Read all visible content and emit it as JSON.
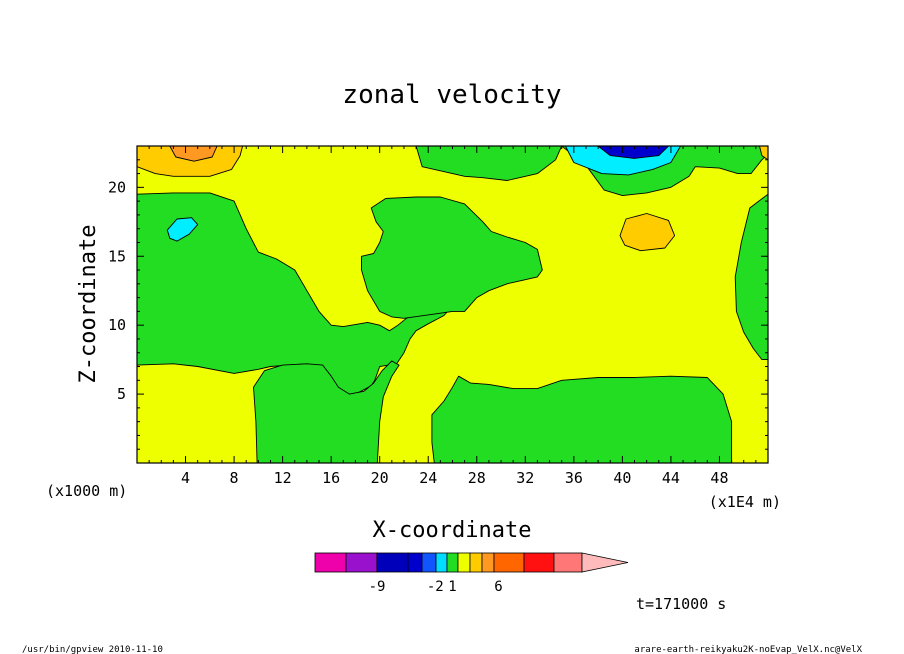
{
  "chart_data": {
    "type": "contour",
    "title": "zonal velocity",
    "xlabel": "X-coordinate",
    "ylabel": "Z-coordinate",
    "x_unit_left": "(x1000 m)",
    "x_unit_right": "(x1E4 m)",
    "xlim": [
      0,
      52
    ],
    "ylim": [
      0,
      23
    ],
    "x_ticks": [
      4,
      8,
      12,
      16,
      20,
      24,
      28,
      32,
      36,
      40,
      44,
      48
    ],
    "x_tick_labels": [
      "4",
      "8",
      "12",
      "16",
      "20",
      "24",
      "28",
      "32",
      "36",
      "40",
      "44",
      "48"
    ],
    "y_ticks": [
      5,
      10,
      15,
      20
    ],
    "y_tick_labels": [
      "5",
      "10",
      "15",
      "20"
    ],
    "time_label": "t=171000 s",
    "colors": {
      "green": "#22dd22",
      "yellow": "#eeff00",
      "yellow_orange": "#ffcc00",
      "orange": "#ff9922",
      "cyan": "#00eeff",
      "blue": "#0000cc"
    },
    "regions": [
      {
        "level": "0 to 1",
        "color": "green",
        "polygon": [
          [
            0,
            19.5
          ],
          [
            3,
            19.6
          ],
          [
            6,
            19.6
          ],
          [
            8,
            19
          ],
          [
            9,
            17
          ],
          [
            10,
            15.3
          ],
          [
            11.5,
            14.8
          ],
          [
            13,
            14
          ],
          [
            14,
            12.5
          ],
          [
            15,
            11
          ],
          [
            16,
            10
          ],
          [
            17,
            9.9
          ],
          [
            19,
            10.2
          ],
          [
            20,
            10
          ],
          [
            20.8,
            9.6
          ],
          [
            21.5,
            10
          ],
          [
            22.2,
            10.5
          ],
          [
            23,
            10.8
          ],
          [
            24,
            11.3
          ],
          [
            25,
            11.9
          ],
          [
            26,
            12.5
          ],
          [
            26.3,
            11.7
          ],
          [
            25.3,
            10.7
          ],
          [
            24,
            10.1
          ],
          [
            23,
            9.6
          ],
          [
            22.5,
            9
          ],
          [
            22,
            8
          ],
          [
            21.4,
            7.2
          ],
          [
            20,
            7
          ],
          [
            19.6,
            6
          ],
          [
            19.3,
            5.6
          ],
          [
            18,
            5
          ],
          [
            17,
            5
          ],
          [
            16.5,
            5.5
          ],
          [
            16,
            6.3
          ],
          [
            15.3,
            7
          ],
          [
            14,
            7.2
          ],
          [
            12.5,
            7.1
          ],
          [
            11,
            7
          ],
          [
            10,
            6.8
          ],
          [
            8,
            6.5
          ],
          [
            5,
            7
          ],
          [
            3,
            7.2
          ],
          [
            0,
            7.1
          ]
        ]
      },
      {
        "level": "0 to 1",
        "color": "green",
        "polygon": [
          [
            9.9,
            0
          ],
          [
            9.8,
            3
          ],
          [
            9.6,
            5.5
          ],
          [
            10.5,
            6.7
          ],
          [
            12,
            7.1
          ],
          [
            14,
            7.2
          ],
          [
            15.3,
            7.1
          ],
          [
            16,
            6.3
          ],
          [
            16.6,
            5.5
          ],
          [
            17.5,
            5
          ],
          [
            18.7,
            5.2
          ],
          [
            19.5,
            5.8
          ],
          [
            20.2,
            6.7
          ],
          [
            21,
            7.4
          ],
          [
            21.6,
            7.1
          ],
          [
            21,
            6.3
          ],
          [
            20.3,
            4.8
          ],
          [
            20,
            3
          ],
          [
            19.8,
            0
          ]
        ]
      },
      {
        "level": "0 to 1",
        "color": "green",
        "polygon": [
          [
            24.5,
            0
          ],
          [
            24.3,
            1.5
          ],
          [
            24.3,
            3.5
          ],
          [
            25.3,
            4.5
          ],
          [
            26,
            5.5
          ],
          [
            26.5,
            6.3
          ],
          [
            27.5,
            5.8
          ],
          [
            29,
            5.7
          ],
          [
            31,
            5.4
          ],
          [
            33,
            5.4
          ],
          [
            35,
            6
          ],
          [
            38,
            6.2
          ],
          [
            41,
            6.2
          ],
          [
            44,
            6.3
          ],
          [
            47,
            6.2
          ],
          [
            48.3,
            5
          ],
          [
            49,
            3
          ],
          [
            49,
            0
          ]
        ]
      },
      {
        "level": "0 to 1",
        "color": "green",
        "polygon": [
          [
            35,
            23
          ],
          [
            37,
            21.6
          ],
          [
            38.5,
            19.8
          ],
          [
            40,
            19.4
          ],
          [
            42,
            19.6
          ],
          [
            44,
            20
          ],
          [
            45.5,
            20.8
          ],
          [
            46,
            21.5
          ],
          [
            48,
            21.4
          ],
          [
            49.5,
            21
          ],
          [
            50.6,
            21
          ],
          [
            51.5,
            22
          ],
          [
            52,
            22.4
          ],
          [
            52,
            23
          ]
        ]
      },
      {
        "level": "0 to 1",
        "color": "green",
        "polygon": [
          [
            52,
            19.5
          ],
          [
            50.5,
            18.5
          ],
          [
            49.8,
            16
          ],
          [
            49.3,
            13.5
          ],
          [
            49.4,
            11
          ],
          [
            50,
            9.5
          ],
          [
            50.8,
            8.3
          ],
          [
            51.5,
            7.5
          ],
          [
            52,
            7.5
          ]
        ]
      },
      {
        "level": "0 to 1",
        "color": "green",
        "polygon": [
          [
            23,
            23
          ],
          [
            23.5,
            21.5
          ],
          [
            25,
            21.2
          ],
          [
            27,
            20.8
          ],
          [
            28.5,
            20.7
          ],
          [
            30.5,
            20.5
          ],
          [
            33,
            21
          ],
          [
            34.5,
            22
          ],
          [
            35,
            23
          ]
        ]
      },
      {
        "level": "0 to 1",
        "color": "green",
        "polygon": [
          [
            18.5,
            15
          ],
          [
            19.5,
            15.2
          ],
          [
            20,
            16
          ],
          [
            20.3,
            16.8
          ],
          [
            19.7,
            17.5
          ],
          [
            19.3,
            18.5
          ],
          [
            20.5,
            19.2
          ],
          [
            23,
            19.3
          ],
          [
            25,
            19.3
          ],
          [
            27,
            18.8
          ],
          [
            28.5,
            17.5
          ],
          [
            29.2,
            16.8
          ],
          [
            30.5,
            16.4
          ],
          [
            32,
            16
          ],
          [
            33,
            15.5
          ],
          [
            33.4,
            14
          ],
          [
            33,
            13.5
          ],
          [
            31.5,
            13.2
          ],
          [
            30.5,
            13
          ],
          [
            29,
            12.5
          ],
          [
            28,
            12
          ],
          [
            27,
            11
          ],
          [
            26,
            11
          ],
          [
            24.5,
            10.8
          ],
          [
            22,
            10.5
          ],
          [
            21,
            10.6
          ],
          [
            20,
            11
          ],
          [
            19,
            12.5
          ],
          [
            18.5,
            14
          ]
        ]
      },
      {
        "level": "-1 to 0",
        "color": "cyan",
        "polygon": [
          [
            2.5,
            16.9
          ],
          [
            3.3,
            17.7
          ],
          [
            4.5,
            17.8
          ],
          [
            5,
            17.3
          ],
          [
            4.3,
            16.6
          ],
          [
            3.3,
            16.1
          ],
          [
            2.7,
            16.3
          ]
        ]
      },
      {
        "level": "-1 to 0",
        "color": "cyan",
        "polygon": [
          [
            35.3,
            23
          ],
          [
            36,
            21.8
          ],
          [
            38.3,
            21
          ],
          [
            40.5,
            20.9
          ],
          [
            42.5,
            21.3
          ],
          [
            44,
            21.8
          ],
          [
            44.8,
            23
          ]
        ]
      },
      {
        "level": "-2 to -1",
        "color": "blue",
        "polygon": [
          [
            38,
            23
          ],
          [
            39,
            22.3
          ],
          [
            41,
            22.1
          ],
          [
            43,
            22.3
          ],
          [
            43.8,
            23
          ]
        ]
      },
      {
        "level": "1 to 2",
        "color": "yellow_orange",
        "polygon": [
          [
            0,
            23
          ],
          [
            0,
            21.5
          ],
          [
            1.5,
            21
          ],
          [
            3,
            20.8
          ],
          [
            6,
            20.8
          ],
          [
            7.8,
            21.3
          ],
          [
            8.5,
            22.3
          ],
          [
            8.7,
            23
          ]
        ]
      },
      {
        "level": "1 to 2",
        "color": "yellow_orange",
        "polygon": [
          [
            39.8,
            16.5
          ],
          [
            40.3,
            17.7
          ],
          [
            42,
            18.1
          ],
          [
            43.8,
            17.6
          ],
          [
            44.3,
            16.5
          ],
          [
            43.5,
            15.6
          ],
          [
            41.5,
            15.4
          ],
          [
            40.2,
            15.8
          ]
        ]
      },
      {
        "level": "1 to 2",
        "color": "yellow_orange",
        "polygon": [
          [
            51.3,
            23
          ],
          [
            51.5,
            22.3
          ],
          [
            52,
            22
          ],
          [
            52,
            23
          ]
        ]
      },
      {
        "level": "2 to 3",
        "color": "orange",
        "polygon": [
          [
            2.7,
            23
          ],
          [
            3.2,
            22.2
          ],
          [
            4.7,
            21.9
          ],
          [
            6.2,
            22.2
          ],
          [
            6.6,
            23
          ]
        ]
      }
    ],
    "colorbar": {
      "colors": [
        "#ee00aa",
        "#9911cc",
        "#0000bb",
        "#0000cc",
        "#1155ff",
        "#00ddff",
        "#22dd22",
        "#eeff00",
        "#ffcc00",
        "#ff9922",
        "#ff6600",
        "#ff1111",
        "#ff7777",
        "#ffbbbb"
      ],
      "labels": [
        {
          "text": "-9",
          "index": 1.5
        },
        {
          "text": "-2",
          "index": 4.5
        },
        {
          "text": "1",
          "index": 6
        },
        {
          "text": "6",
          "index": 9.5
        }
      ]
    },
    "footer_left": "/usr/bin/gpview   2010-11-10",
    "footer_right": "arare-earth-reikyaku2K-noEvap_VelX.nc@VelX"
  }
}
